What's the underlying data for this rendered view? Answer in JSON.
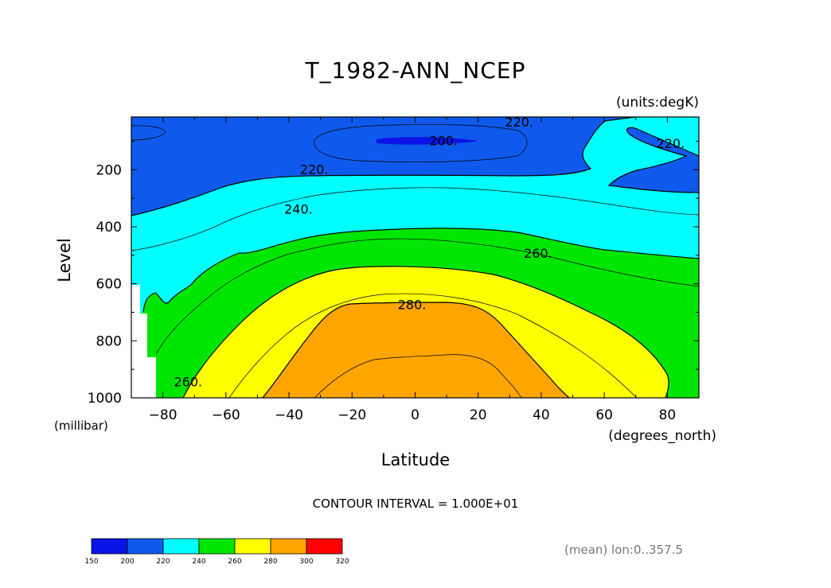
{
  "chart_data": {
    "type": "heatmap",
    "title": "T_1982-ANN_NCEP",
    "units": "(units:degK)",
    "xlabel": "Latitude",
    "xunits": "(degrees_north)",
    "ylabel": "Level",
    "yunits": "(millibar)",
    "xlim": [
      -90,
      90
    ],
    "ylim": [
      1000,
      15
    ],
    "x_ticks": [
      -80,
      -60,
      -40,
      -20,
      0,
      20,
      40,
      60,
      80
    ],
    "x_tick_labels": [
      "−80",
      "−60",
      "−40",
      "−20",
      "0",
      "20",
      "40",
      "60",
      "80"
    ],
    "y_ticks": [
      200,
      400,
      600,
      800,
      1000
    ],
    "y_tick_labels": [
      "200",
      "400",
      "600",
      "800",
      "1000"
    ],
    "contour_interval_text": "CONTOUR INTERVAL = 1.000E+01",
    "subtitle_right": "(mean) lon:0..357.5",
    "contour_labels": [
      {
        "text": "220.",
        "lat": 33,
        "lev": 35
      },
      {
        "text": "200.",
        "lat": 9,
        "lev": 100
      },
      {
        "text": "220.",
        "lat": -32,
        "lev": 200
      },
      {
        "text": "220.",
        "lat": 81,
        "lev": 110
      },
      {
        "text": "240.",
        "lat": -37,
        "lev": 340
      },
      {
        "text": "260.",
        "lat": 39,
        "lev": 495
      },
      {
        "text": "280.",
        "lat": -1,
        "lev": 675
      },
      {
        "text": "260.",
        "lat": -72,
        "lev": 945
      }
    ],
    "colorbar": {
      "levels": [
        150,
        200,
        220,
        240,
        260,
        280,
        300,
        320
      ],
      "level_labels": [
        "150",
        "200",
        "220",
        "240",
        "260",
        "280",
        "300",
        "320"
      ],
      "colors": [
        "#0a14e6",
        "#0f5aec",
        "#00ffff",
        "#00e600",
        "#ffff00",
        "#ffa500",
        "#ff0000"
      ]
    },
    "fill_colors": {
      "below200": "#0a14e6",
      "t200_220": "#0f5aec",
      "t220_240": "#00ffff",
      "t240_260": "#00e600",
      "t260_280": "#ffff00",
      "t280_300": "#ffa500"
    }
  }
}
